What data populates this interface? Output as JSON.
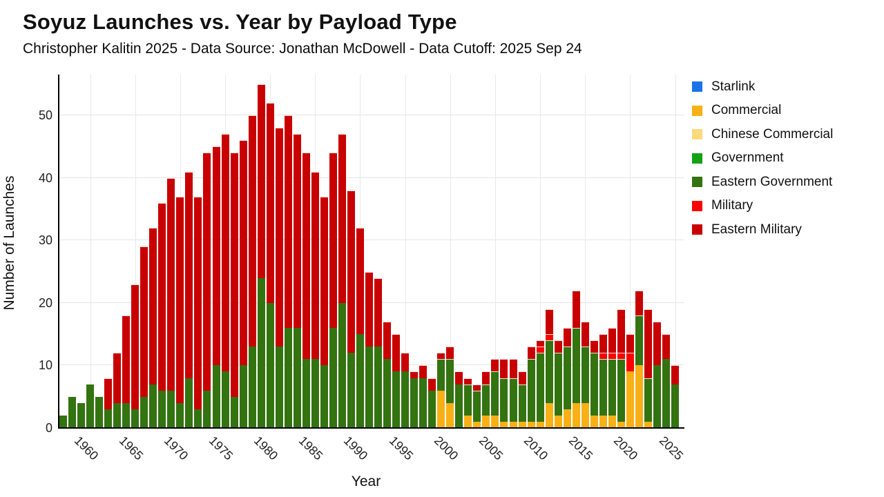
{
  "header": {
    "title": "Soyuz Launches vs. Year by Payload Type",
    "subtitle": "Christopher Kalitin 2025 - Data Source: Jonathan McDowell - Data Cutoff: 2025 Sep 24"
  },
  "chart_data": {
    "type": "bar",
    "stacked": true,
    "title": "Soyuz Launches vs. Year by Payload Type",
    "subtitle": "Christopher Kalitin 2025 - Data Source: Jonathan McDowell - Data Cutoff: 2025 Sep 24",
    "xlabel": "Year",
    "ylabel": "Number of Launches",
    "ylim": [
      0,
      55
    ],
    "yticks": [
      0,
      10,
      20,
      30,
      40,
      50
    ],
    "xticks": [
      1960,
      1965,
      1970,
      1975,
      1980,
      1985,
      1990,
      1995,
      2000,
      2005,
      2010,
      2015,
      2020,
      2025
    ],
    "grid": true,
    "legend_position": "right",
    "background": "#ffffff",
    "axis_color": "#000000",
    "grid_color": "#e6e6e6",
    "years": [
      1957,
      1958,
      1959,
      1960,
      1961,
      1962,
      1963,
      1964,
      1965,
      1966,
      1967,
      1968,
      1969,
      1970,
      1971,
      1972,
      1973,
      1974,
      1975,
      1976,
      1977,
      1978,
      1979,
      1980,
      1981,
      1982,
      1983,
      1984,
      1985,
      1986,
      1987,
      1988,
      1989,
      1990,
      1991,
      1992,
      1993,
      1994,
      1995,
      1996,
      1997,
      1998,
      1999,
      2000,
      2001,
      2002,
      2003,
      2004,
      2005,
      2006,
      2007,
      2008,
      2009,
      2010,
      2011,
      2012,
      2013,
      2014,
      2015,
      2016,
      2017,
      2018,
      2019,
      2020,
      2021,
      2022,
      2023,
      2024,
      2025
    ],
    "series": [
      {
        "name": "Starlink",
        "color": "#1a73e8",
        "values": [
          0,
          0,
          0,
          0,
          0,
          0,
          0,
          0,
          0,
          0,
          0,
          0,
          0,
          0,
          0,
          0,
          0,
          0,
          0,
          0,
          0,
          0,
          0,
          0,
          0,
          0,
          0,
          0,
          0,
          0,
          0,
          0,
          0,
          0,
          0,
          0,
          0,
          0,
          0,
          0,
          0,
          0,
          0,
          0,
          0,
          0,
          0,
          0,
          0,
          0,
          0,
          0,
          0,
          0,
          0,
          0,
          0,
          0,
          0,
          0,
          0,
          0,
          0,
          0,
          0,
          0,
          0,
          0,
          0
        ]
      },
      {
        "name": "Commercial",
        "color": "#f7b015",
        "values": [
          0,
          0,
          0,
          0,
          0,
          0,
          0,
          0,
          0,
          0,
          0,
          0,
          0,
          0,
          0,
          0,
          0,
          0,
          0,
          0,
          0,
          0,
          0,
          0,
          0,
          0,
          0,
          0,
          0,
          0,
          0,
          0,
          0,
          0,
          0,
          0,
          0,
          0,
          0,
          0,
          0,
          0,
          6,
          4,
          0,
          2,
          1,
          2,
          2,
          1,
          1,
          1,
          1,
          1,
          4,
          2,
          3,
          4,
          4,
          2,
          2,
          2,
          1,
          9,
          10,
          1,
          0,
          0,
          0
        ]
      },
      {
        "name": "Chinese Commercial",
        "color": "#fbda7c",
        "values": [
          0,
          0,
          0,
          0,
          0,
          0,
          0,
          0,
          0,
          0,
          0,
          0,
          0,
          0,
          0,
          0,
          0,
          0,
          0,
          0,
          0,
          0,
          0,
          0,
          0,
          0,
          0,
          0,
          0,
          0,
          0,
          0,
          0,
          0,
          0,
          0,
          0,
          0,
          0,
          0,
          0,
          0,
          0,
          0,
          0,
          0,
          0,
          0,
          0,
          0,
          0,
          0,
          0,
          0,
          0,
          0,
          0,
          0,
          0,
          0,
          0,
          0,
          0,
          0,
          0,
          0,
          0,
          0,
          0
        ]
      },
      {
        "name": "Government",
        "color": "#12a212",
        "values": [
          0,
          0,
          0,
          0,
          0,
          0,
          0,
          0,
          0,
          0,
          0,
          0,
          0,
          0,
          0,
          0,
          0,
          0,
          0,
          0,
          0,
          0,
          0,
          0,
          0,
          0,
          0,
          0,
          0,
          0,
          0,
          0,
          0,
          0,
          0,
          0,
          0,
          0,
          0,
          0,
          0,
          0,
          0,
          0,
          0,
          0,
          0,
          0,
          0,
          0,
          0,
          0,
          0,
          0,
          0,
          0,
          0,
          0,
          0,
          0,
          0,
          0,
          0,
          0,
          0,
          0,
          0,
          0,
          0
        ]
      },
      {
        "name": "Eastern Government",
        "color": "#337310",
        "values": [
          2,
          5,
          4,
          7,
          5,
          3,
          4,
          4,
          3,
          5,
          7,
          6,
          6,
          4,
          8,
          3,
          6,
          10,
          9,
          5,
          10,
          13,
          24,
          20,
          13,
          16,
          16,
          11,
          11,
          10,
          16,
          20,
          12,
          15,
          13,
          13,
          11,
          9,
          9,
          8,
          8,
          6,
          5,
          7,
          7,
          5,
          5,
          5,
          7,
          7,
          7,
          6,
          10,
          11,
          10,
          10,
          10,
          12,
          9,
          10,
          9,
          9,
          10,
          0,
          8,
          7,
          10,
          11,
          7
        ]
      },
      {
        "name": "Military",
        "color": "#ff0000",
        "values": [
          0,
          0,
          0,
          0,
          0,
          0,
          0,
          0,
          0,
          0,
          0,
          0,
          0,
          0,
          0,
          0,
          0,
          0,
          0,
          0,
          0,
          0,
          0,
          0,
          0,
          0,
          0,
          0,
          0,
          0,
          0,
          0,
          0,
          0,
          0,
          0,
          0,
          0,
          0,
          0,
          0,
          0,
          0,
          0,
          0,
          0,
          0,
          0,
          0,
          0,
          0,
          0,
          0,
          1,
          1,
          0,
          0,
          0,
          0,
          0,
          1,
          1,
          1,
          3,
          0,
          0,
          0,
          0,
          0
        ]
      },
      {
        "name": "Eastern Military",
        "color": "#c90000",
        "values": [
          0,
          0,
          0,
          0,
          0,
          5,
          8,
          14,
          20,
          24,
          25,
          30,
          34,
          33,
          33,
          34,
          38,
          35,
          38,
          39,
          36,
          37,
          31,
          32,
          35,
          34,
          31,
          33,
          30,
          27,
          28,
          27,
          26,
          17,
          12,
          11,
          6,
          6,
          3,
          1,
          2,
          2,
          1,
          2,
          2,
          1,
          1,
          2,
          2,
          3,
          3,
          2,
          2,
          1,
          4,
          2,
          3,
          6,
          4,
          2,
          3,
          4,
          7,
          3,
          4,
          11,
          7,
          4,
          3
        ]
      }
    ]
  }
}
